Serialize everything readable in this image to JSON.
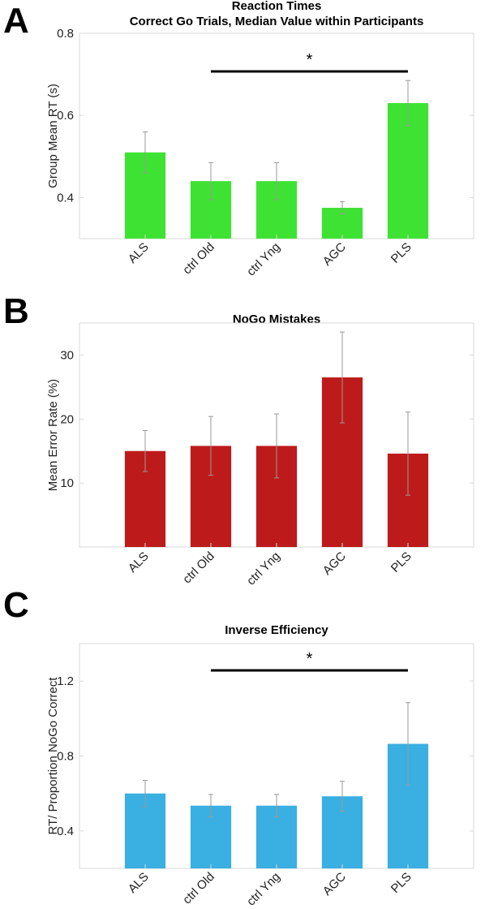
{
  "chart_data": [
    {
      "type": "bar",
      "panel": "A",
      "title": "Reaction Times",
      "subtitle": "Correct Go Trials, Median Value within Participants",
      "ylabel": "Group Mean RT (s)",
      "xlabel": "",
      "categories": [
        "ALS",
        "ctrl Old",
        "ctrl Yng",
        "AGC",
        "PLS"
      ],
      "values": [
        0.51,
        0.44,
        0.44,
        0.375,
        0.63
      ],
      "errors": [
        0.05,
        0.045,
        0.045,
        0.015,
        0.055
      ],
      "ylim": [
        0.3,
        0.8
      ],
      "yticks": [
        0.4,
        0.6,
        0.8
      ],
      "ytick_labels": [
        "0.4",
        "0.6",
        "0.8"
      ],
      "bar_color": "#3ee232",
      "significance": {
        "from": "ctrl Old",
        "to": "PLS",
        "label": "*"
      }
    },
    {
      "type": "bar",
      "panel": "B",
      "title": "NoGo Mistakes",
      "ylabel": "Mean Error Rate (%)",
      "xlabel": "",
      "categories": [
        "ALS",
        "ctrl Old",
        "ctrl Yng",
        "AGC",
        "PLS"
      ],
      "values": [
        15.0,
        15.8,
        15.8,
        26.5,
        14.6
      ],
      "errors": [
        3.2,
        4.6,
        5.0,
        7.1,
        6.5
      ],
      "ylim": [
        0,
        35
      ],
      "yticks": [
        10,
        20,
        30
      ],
      "ytick_labels": [
        "10",
        "20",
        "30"
      ],
      "bar_color": "#bd1b1b"
    },
    {
      "type": "bar",
      "panel": "C",
      "title": "Inverse Efficiency",
      "ylabel": "RT/ Proportion NoGo Correct",
      "xlabel": "",
      "categories": [
        "ALS",
        "ctrl Old",
        "ctrl Yng",
        "AGC",
        "PLS"
      ],
      "values": [
        0.6,
        0.535,
        0.535,
        0.585,
        0.865
      ],
      "errors": [
        0.07,
        0.06,
        0.06,
        0.08,
        0.22
      ],
      "ylim": [
        0.2,
        1.4
      ],
      "yticks": [
        0.4,
        0.8,
        1.2
      ],
      "ytick_labels": [
        "0.4",
        "0.8",
        "1.2"
      ],
      "bar_color": "#3aafe2",
      "significance": {
        "from": "ctrl Old",
        "to": "PLS",
        "label": "*"
      }
    }
  ]
}
